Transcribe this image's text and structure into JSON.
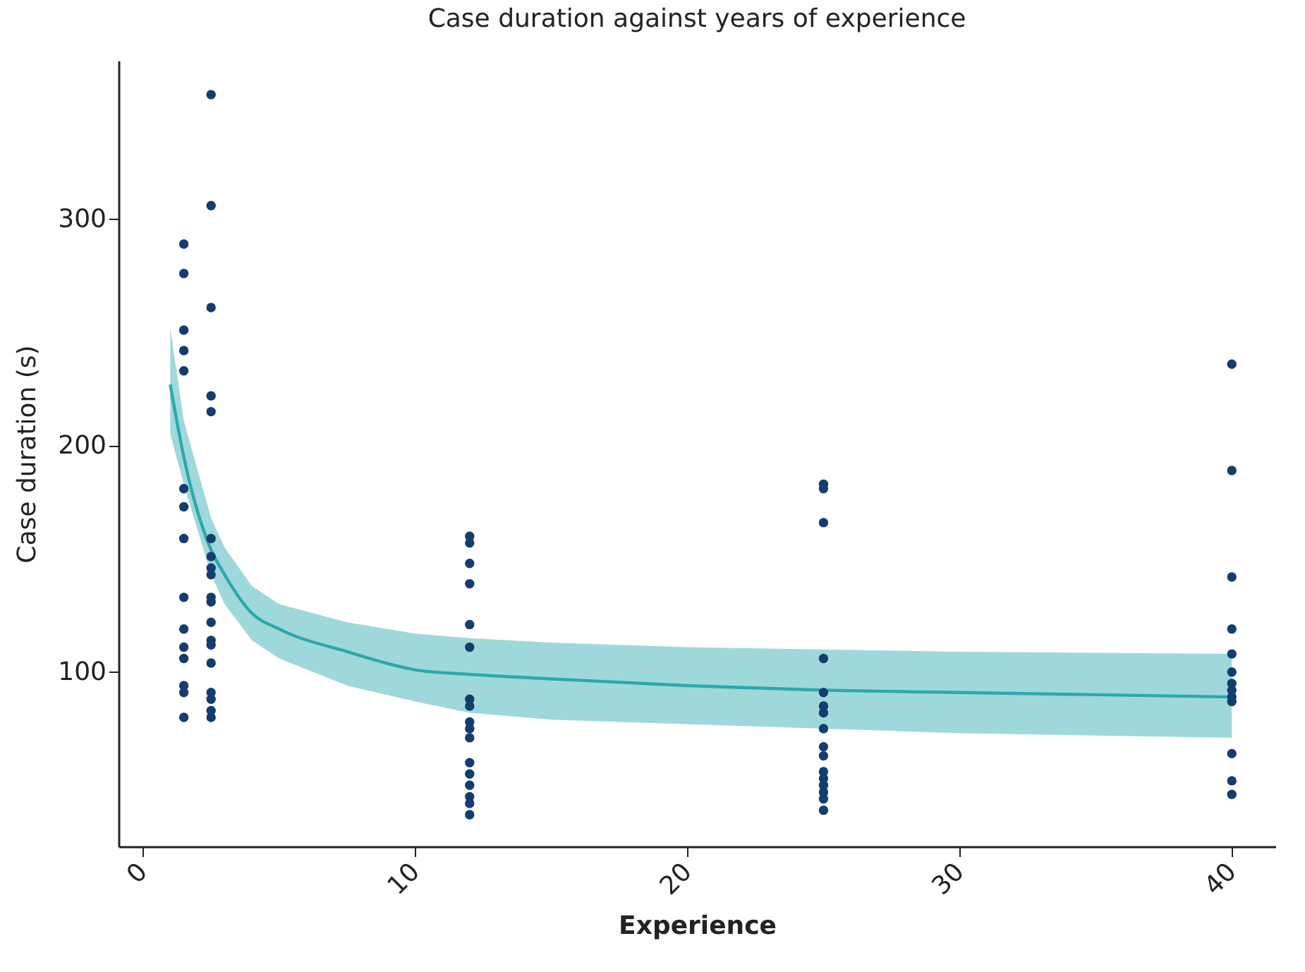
{
  "chart_data": {
    "type": "scatter",
    "title": "Case duration against years of experience",
    "xlabel": "Experience",
    "ylabel": "Case duration (s)",
    "xlim": [
      -0.9,
      41.6
    ],
    "ylim": [
      23,
      370
    ],
    "xticks": [
      0,
      10,
      20,
      30,
      40
    ],
    "yticks": [
      100,
      200,
      300
    ],
    "series": [
      {
        "color": "#143d6f",
        "marker": "circle",
        "x": [
          1.5,
          1.5,
          1.5,
          1.5,
          1.5,
          1.5,
          1.5,
          1.5,
          1.5,
          1.5,
          1.5,
          1.5,
          1.5,
          1.5,
          1.5,
          2.5,
          2.5,
          2.5,
          2.5,
          2.5,
          2.5,
          2.5,
          2.5,
          2.5,
          2.5,
          2.5,
          2.5,
          2.5,
          2.5,
          2.5,
          2.5,
          2.5,
          2.5,
          2.5,
          12,
          12,
          12,
          12,
          12,
          12,
          12,
          12,
          12,
          12,
          12,
          12,
          12,
          12,
          12,
          12,
          12,
          25,
          25,
          25,
          25,
          25,
          25,
          25,
          25,
          25,
          25,
          25,
          25,
          25,
          25,
          25,
          25,
          40,
          40,
          40,
          40,
          40,
          40,
          40,
          40,
          40,
          40,
          40,
          40,
          40
        ],
        "values": [
          289,
          276,
          251,
          242,
          233,
          181,
          173,
          159,
          133,
          119,
          111,
          106,
          94,
          91,
          80,
          355,
          306,
          261,
          222,
          215,
          159,
          151,
          146,
          143,
          133,
          131,
          122,
          114,
          112,
          104,
          91,
          88,
          83,
          80,
          160,
          157,
          148,
          139,
          121,
          111,
          88,
          85,
          78,
          75,
          71,
          60,
          55,
          50,
          45,
          42,
          37,
          183,
          181,
          166,
          106,
          91,
          85,
          82,
          75,
          67,
          63,
          56,
          53,
          50,
          47,
          44,
          39,
          236,
          189,
          142,
          119,
          108,
          100,
          95,
          92,
          89,
          87,
          64,
          52,
          46
        ]
      },
      {
        "type": "line",
        "color": "#2aa9ac",
        "x": [
          1,
          1.5,
          2.5,
          3,
          4,
          5,
          7.5,
          10,
          12,
          15,
          20,
          25,
          30,
          40
        ],
        "values": [
          227,
          195,
          154,
          143,
          126,
          119,
          109,
          101,
          99,
          97,
          94,
          92,
          91,
          89
        ],
        "lower": [
          205,
          183,
          143,
          130,
          114,
          106,
          94,
          87,
          82,
          79,
          77,
          75,
          73,
          71
        ],
        "upper": [
          252,
          211,
          168,
          155,
          138,
          130,
          122,
          117,
          115,
          113,
          111,
          110,
          109,
          108
        ]
      }
    ]
  }
}
